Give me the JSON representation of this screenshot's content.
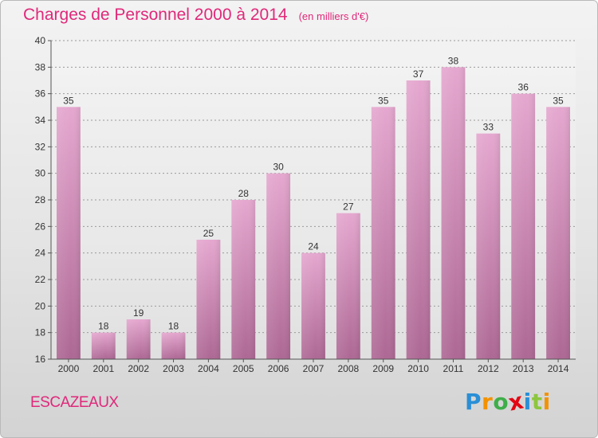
{
  "header": {
    "title": "Charges de Personnel 2000 à 2014",
    "subtitle": "(en milliers d'€)"
  },
  "footer": {
    "commune": "ESCAZEAUX",
    "logo": {
      "text": "Proxiti",
      "letter_colors": [
        "#2a8fd6",
        "#f39200",
        "#3fae49",
        "#e30613",
        "#2a8fd6",
        "#8cc63f",
        "#f39200"
      ]
    }
  },
  "colors": {
    "bar_top": "#e5a7cf",
    "bar_bottom": "#ad6894",
    "accent": "#e0287a"
  },
  "chart_data": {
    "type": "bar",
    "title": "Charges de Personnel 2000 à 2014",
    "subtitle": "(en milliers d'€)",
    "categories": [
      "2000",
      "2001",
      "2002",
      "2003",
      "2004",
      "2005",
      "2006",
      "2007",
      "2008",
      "2009",
      "2010",
      "2011",
      "2012",
      "2013",
      "2014"
    ],
    "values": [
      35,
      18,
      19,
      18,
      25,
      28,
      30,
      24,
      27,
      35,
      37,
      38,
      33,
      36,
      35
    ],
    "ylim": [
      16,
      40
    ],
    "yticks": [
      16,
      18,
      20,
      22,
      24,
      26,
      28,
      30,
      32,
      34,
      36,
      38,
      40
    ],
    "grid": true,
    "legend": "none"
  }
}
